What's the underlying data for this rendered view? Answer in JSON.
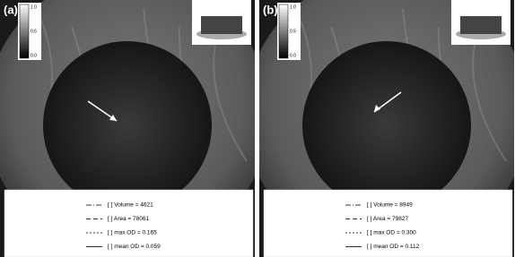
{
  "panels": [
    {
      "label": "(a)",
      "colorbar_ticks": [
        "1.0",
        "0.5",
        "0.0"
      ],
      "legend": [
        "[ ] Volume = 4621",
        "[ ] Area = 78061",
        "[ ] max OD = 0.165",
        "[ ] mean OD = 0.059"
      ]
    },
    {
      "label": "(b)",
      "colorbar_ticks": [
        "1.0",
        "0.5",
        "0.0"
      ],
      "legend": [
        "[ ] Volume = 8949",
        "[ ] Area = 79827",
        "[ ] max OD = 0.300",
        "[ ] mean OD = 0.112"
      ]
    }
  ]
}
